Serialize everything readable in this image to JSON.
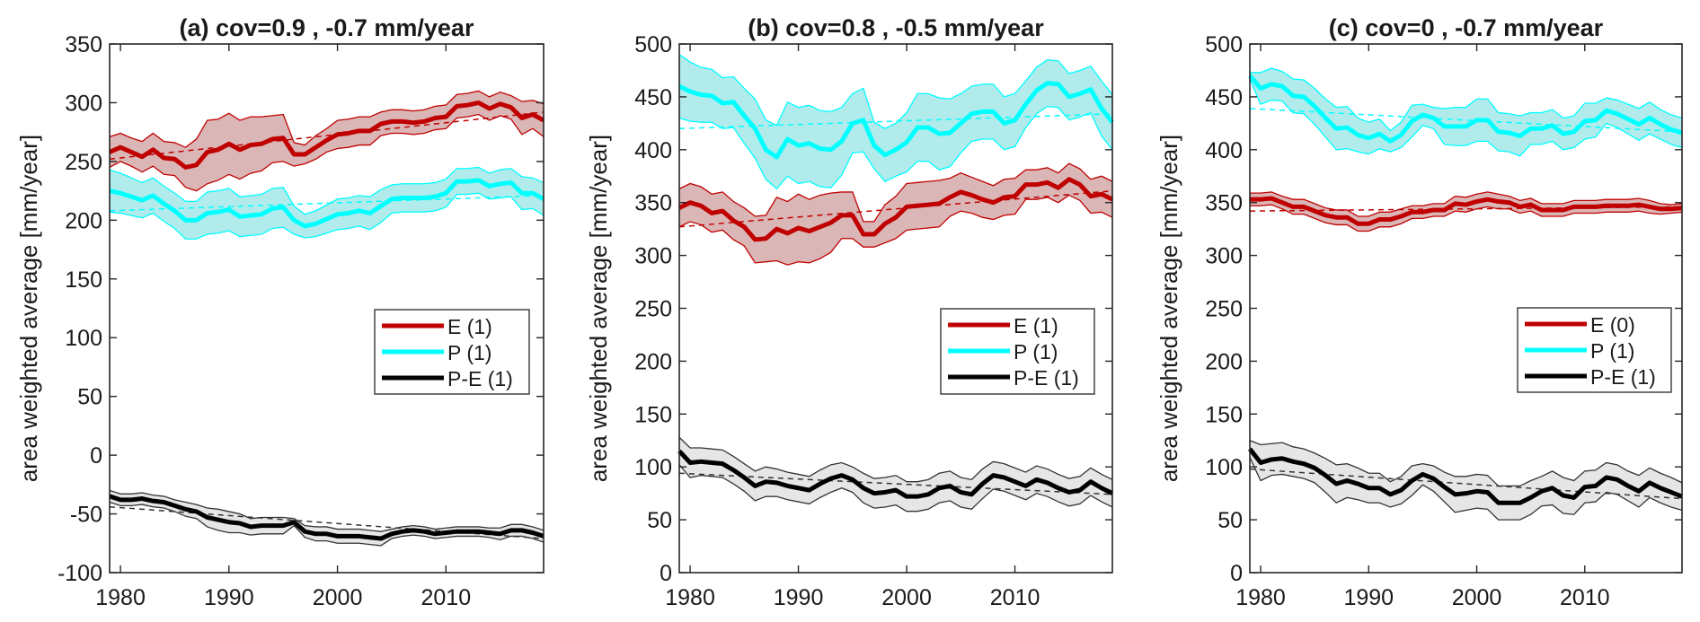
{
  "chart_data": [
    {
      "type": "line",
      "title": "(a) cov=0.9 , -0.7 mm/year",
      "xlabel": "",
      "ylabel": "area weighted average [mm/year]",
      "xlim": [
        1979,
        2019
      ],
      "ylim": [
        -100,
        350
      ],
      "xticks": [
        1980,
        1990,
        2000,
        2010
      ],
      "yticks": [
        -100,
        -50,
        0,
        50,
        100,
        150,
        200,
        250,
        300,
        350
      ],
      "x": [
        1979,
        1980,
        1981,
        1982,
        1983,
        1984,
        1985,
        1986,
        1987,
        1988,
        1989,
        1990,
        1991,
        1992,
        1993,
        1994,
        1995,
        1996,
        1997,
        1998,
        1999,
        2000,
        2001,
        2002,
        2003,
        2004,
        2005,
        2006,
        2007,
        2008,
        2009,
        2010,
        2011,
        2012,
        2013,
        2014,
        2015,
        2016,
        2017,
        2018,
        2019
      ],
      "legend": [
        "E (1)",
        "P (1)",
        "P-E (1)"
      ],
      "legend_position": "center-right",
      "grid": false,
      "series": [
        {
          "name": "E",
          "legend_label": "E (1)",
          "color": "#c00000",
          "fill": "#dbb6b6",
          "values": [
            258,
            262,
            258,
            254,
            260,
            253,
            252,
            245,
            247,
            258,
            260,
            265,
            260,
            264,
            265,
            269,
            270,
            256,
            256,
            262,
            268,
            273,
            274,
            276,
            276,
            282,
            284,
            284,
            283,
            284,
            287,
            288,
            297,
            298,
            300,
            295,
            299,
            296,
            287,
            290,
            285
          ],
          "band_halfwidth": [
            13,
            12,
            12,
            13,
            14,
            14,
            14,
            17,
            22,
            27,
            26,
            26,
            25,
            24,
            23,
            20,
            20,
            10,
            8,
            10,
            10,
            12,
            12,
            12,
            12,
            10,
            10,
            10,
            10,
            10,
            10,
            10,
            10,
            10,
            10,
            10,
            10,
            10,
            14,
            12,
            14
          ],
          "trend": [
            252,
            292
          ]
        },
        {
          "name": "P",
          "legend_label": "P (1)",
          "color": "#00ffff",
          "fill": "#b2ebeb",
          "values": [
            225,
            223,
            220,
            217,
            221,
            214,
            208,
            200,
            200,
            206,
            207,
            209,
            203,
            204,
            205,
            210,
            211,
            200,
            195,
            197,
            201,
            205,
            206,
            208,
            206,
            212,
            218,
            219,
            219,
            219,
            220,
            223,
            233,
            233,
            234,
            229,
            231,
            232,
            223,
            223,
            218
          ],
          "band_halfwidth": [
            18,
            17,
            16,
            15,
            15,
            15,
            15,
            16,
            16,
            18,
            18,
            18,
            17,
            17,
            17,
            17,
            17,
            12,
            10,
            11,
            12,
            13,
            13,
            13,
            14,
            14,
            12,
            12,
            12,
            12,
            12,
            12,
            11,
            11,
            11,
            11,
            12,
            12,
            14,
            13,
            14
          ],
          "trend": [
            208,
            221
          ]
        },
        {
          "name": "P-E",
          "legend_label": "P-E (1)",
          "color": "#000000",
          "fill": "#e6e6e6",
          "values": [
            -35,
            -38,
            -38,
            -37,
            -39,
            -40,
            -43,
            -46,
            -48,
            -53,
            -55,
            -57,
            -58,
            -61,
            -60,
            -60,
            -60,
            -57,
            -65,
            -67,
            -67,
            -69,
            -69,
            -69,
            -70,
            -71,
            -67,
            -65,
            -64,
            -65,
            -67,
            -66,
            -65,
            -65,
            -65,
            -66,
            -67,
            -64,
            -64,
            -66,
            -69
          ],
          "band_halfwidth": [
            5,
            5,
            5,
            5,
            5,
            5,
            5,
            6,
            6,
            8,
            9,
            9,
            8,
            7,
            7,
            7,
            7,
            3,
            5,
            6,
            6,
            6,
            6,
            6,
            6,
            6,
            4,
            4,
            4,
            4,
            4,
            4,
            4,
            4,
            4,
            4,
            5,
            5,
            5,
            5,
            5
          ],
          "trend": [
            -44,
            -71
          ]
        }
      ]
    },
    {
      "type": "line",
      "title": "(b) cov=0.8 , -0.5 mm/year",
      "xlabel": "",
      "ylabel": "area weighted average [mm/year]",
      "xlim": [
        1979,
        2019
      ],
      "ylim": [
        0,
        500
      ],
      "xticks": [
        1980,
        1990,
        2000,
        2010
      ],
      "yticks": [
        0,
        50,
        100,
        150,
        200,
        250,
        300,
        350,
        400,
        450,
        500
      ],
      "x": [
        1979,
        1980,
        1981,
        1982,
        1983,
        1984,
        1985,
        1986,
        1987,
        1988,
        1989,
        1990,
        1991,
        1992,
        1993,
        1994,
        1995,
        1996,
        1997,
        1998,
        1999,
        2000,
        2001,
        2002,
        2003,
        2004,
        2005,
        2006,
        2007,
        2008,
        2009,
        2010,
        2011,
        2012,
        2013,
        2014,
        2015,
        2016,
        2017,
        2018,
        2019
      ],
      "legend": [
        "E (1)",
        "P (1)",
        "P-E (1)"
      ],
      "legend_position": "center-right",
      "grid": false,
      "series": [
        {
          "name": "E",
          "legend_label": "E (1)",
          "color": "#c00000",
          "fill": "#dbb6b6",
          "values": [
            345,
            350,
            347,
            340,
            342,
            333,
            327,
            315,
            316,
            325,
            321,
            326,
            323,
            327,
            331,
            338,
            338,
            320,
            320,
            330,
            336,
            346,
            347,
            348,
            349,
            355,
            360,
            357,
            353,
            350,
            355,
            356,
            367,
            367,
            369,
            364,
            372,
            367,
            356,
            358,
            353
          ],
          "band_halfwidth": [
            18,
            18,
            18,
            18,
            18,
            18,
            18,
            22,
            22,
            30,
            30,
            32,
            30,
            30,
            28,
            22,
            22,
            12,
            12,
            18,
            20,
            22,
            22,
            22,
            22,
            18,
            18,
            17,
            17,
            16,
            17,
            17,
            14,
            14,
            14,
            14,
            15,
            15,
            16,
            17,
            17
          ],
          "trend": [
            327,
            361
          ]
        },
        {
          "name": "P",
          "legend_label": "P (1)",
          "color": "#00ffff",
          "fill": "#b2ebeb",
          "values": [
            460,
            455,
            452,
            451,
            444,
            445,
            432,
            420,
            400,
            393,
            410,
            404,
            406,
            401,
            400,
            408,
            425,
            428,
            404,
            395,
            400,
            407,
            421,
            421,
            415,
            416,
            425,
            434,
            436,
            436,
            425,
            428,
            443,
            456,
            463,
            462,
            450,
            453,
            457,
            439,
            426
          ],
          "band_halfwidth": [
            30,
            28,
            26,
            25,
            24,
            24,
            26,
            28,
            28,
            30,
            35,
            36,
            36,
            36,
            36,
            32,
            28,
            30,
            22,
            25,
            25,
            28,
            32,
            32,
            34,
            32,
            28,
            26,
            26,
            26,
            25,
            25,
            22,
            22,
            22,
            22,
            22,
            22,
            22,
            26,
            26
          ],
          "trend": [
            420,
            434
          ]
        },
        {
          "name": "P-E",
          "legend_label": "P-E (1)",
          "color": "#000000",
          "fill": "#e6e6e6",
          "values": [
            115,
            104,
            105,
            104,
            103,
            97,
            90,
            82,
            86,
            85,
            82,
            80,
            78,
            84,
            89,
            92,
            88,
            80,
            75,
            76,
            78,
            72,
            72,
            74,
            80,
            82,
            76,
            74,
            84,
            92,
            90,
            86,
            82,
            88,
            85,
            80,
            76,
            78,
            86,
            80,
            75
          ],
          "band_halfwidth": [
            13,
            14,
            13,
            13,
            13,
            13,
            13,
            14,
            14,
            13,
            13,
            13,
            13,
            13,
            13,
            12,
            12,
            14,
            14,
            14,
            14,
            14,
            14,
            14,
            14,
            14,
            14,
            14,
            14,
            13,
            13,
            13,
            13,
            13,
            13,
            13,
            13,
            13,
            13,
            13,
            13
          ],
          "trend": [
            94,
            74
          ]
        }
      ]
    },
    {
      "type": "line",
      "title": "(c) cov=0 , -0.7 mm/year",
      "xlabel": "",
      "ylabel": "area weighted average [mm/year]",
      "xlim": [
        1979,
        2019
      ],
      "ylim": [
        0,
        500
      ],
      "xticks": [
        1980,
        1990,
        2000,
        2010
      ],
      "yticks": [
        0,
        50,
        100,
        150,
        200,
        250,
        300,
        350,
        400,
        450,
        500
      ],
      "x": [
        1979,
        1980,
        1981,
        1982,
        1983,
        1984,
        1985,
        1986,
        1987,
        1988,
        1989,
        1990,
        1991,
        1992,
        1993,
        1994,
        1995,
        1996,
        1997,
        1998,
        1999,
        2000,
        2001,
        2002,
        2003,
        2004,
        2005,
        2006,
        2007,
        2008,
        2009,
        2010,
        2011,
        2012,
        2013,
        2014,
        2015,
        2016,
        2017,
        2018,
        2019
      ],
      "legend": [
        "E (0)",
        "P (1)",
        "P-E (1)"
      ],
      "legend_position": "center-right",
      "grid": false,
      "series": [
        {
          "name": "E",
          "legend_label": "E (0)",
          "color": "#c00000",
          "fill": "#dbb6b6",
          "values": [
            353,
            353,
            354,
            350,
            346,
            346,
            342,
            338,
            336,
            336,
            330,
            330,
            334,
            334,
            337,
            341,
            341,
            343,
            343,
            349,
            348,
            351,
            353,
            351,
            350,
            346,
            348,
            343,
            343,
            343,
            346,
            346,
            346,
            347,
            347,
            347,
            348,
            346,
            344,
            344,
            345
          ],
          "band_halfwidth": [
            6,
            6,
            6,
            6,
            7,
            7,
            7,
            7,
            7,
            7,
            7,
            7,
            7,
            7,
            7,
            6,
            6,
            6,
            6,
            7,
            7,
            7,
            7,
            7,
            6,
            6,
            6,
            6,
            6,
            6,
            6,
            6,
            6,
            6,
            6,
            6,
            6,
            6,
            5,
            4,
            4
          ],
          "trend": [
            342,
            346
          ]
        },
        {
          "name": "P",
          "legend_label": "P (1)",
          "color": "#00ffff",
          "fill": "#b2ebeb",
          "values": [
            470,
            458,
            462,
            460,
            451,
            450,
            441,
            430,
            420,
            421,
            414,
            411,
            415,
            408,
            414,
            427,
            433,
            430,
            422,
            422,
            422,
            428,
            428,
            417,
            416,
            413,
            420,
            420,
            423,
            415,
            417,
            427,
            428,
            437,
            434,
            429,
            424,
            430,
            424,
            419,
            416
          ],
          "band_halfwidth": [
            3,
            15,
            15,
            14,
            16,
            16,
            17,
            18,
            20,
            20,
            16,
            15,
            14,
            10,
            12,
            15,
            10,
            10,
            17,
            18,
            18,
            20,
            20,
            18,
            18,
            19,
            15,
            15,
            15,
            15,
            15,
            17,
            16,
            12,
            13,
            14,
            15,
            15,
            14,
            14,
            14
          ],
          "trend": [
            439,
            417
          ]
        },
        {
          "name": "P-E",
          "legend_label": "P-E (1)",
          "color": "#000000",
          "fill": "#e6e6e6",
          "values": [
            117,
            104,
            107,
            108,
            105,
            103,
            99,
            92,
            84,
            87,
            84,
            80,
            80,
            74,
            78,
            87,
            93,
            89,
            81,
            74,
            75,
            77,
            76,
            66,
            66,
            66,
            71,
            77,
            80,
            73,
            71,
            81,
            82,
            90,
            88,
            82,
            77,
            85,
            80,
            76,
            72
          ],
          "band_halfwidth": [
            8,
            17,
            15,
            15,
            14,
            14,
            14,
            16,
            18,
            16,
            15,
            14,
            14,
            12,
            13,
            14,
            10,
            12,
            14,
            17,
            16,
            16,
            16,
            16,
            16,
            16,
            16,
            14,
            16,
            17,
            16,
            15,
            15,
            14,
            14,
            14,
            15,
            14,
            14,
            14,
            13
          ],
          "trend": [
            98,
            70
          ]
        }
      ]
    }
  ]
}
